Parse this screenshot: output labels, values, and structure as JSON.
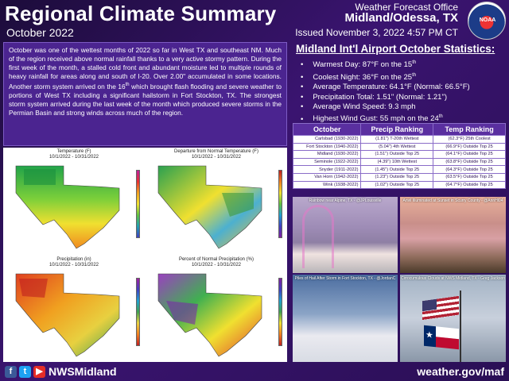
{
  "header": {
    "title": "Regional Climate Summary",
    "subtitle": "October 2022",
    "office_line1": "Weather Forecast Office",
    "office_line2": "Midland/Odessa, TX",
    "issued": "Issued November 3, 2022 4:57 PM CT",
    "logo_text": "NOAA"
  },
  "narrative": {
    "p1": "October was one of the wettest months of 2022 so far in West TX and southeast NM. Much of the region received above normal rainfall thanks to a very active stormy pattern. During the first week of the month, a stalled cold front and abundant moisture led to multiple rounds of heavy rainfall for areas along and south of I-20. Over 2.00\" accumulated in some locations. Another storm system arrived on the 16",
    "sup1": "th",
    "p2": " which brought flash flooding and severe weather to portions of West TX including a significant hailstorm in Fort Stockton, TX. The strongest storm system arrived during the last week of the month which produced severe storms in the Permian Basin and strong winds across much of the region."
  },
  "maps": [
    {
      "title": "Temperature (F)",
      "dates": "10/1/2022 - 10/31/2022"
    },
    {
      "title": "Departure from Normal Temperature (F)",
      "dates": "10/1/2022 - 10/31/2022"
    },
    {
      "title": "Precipitation (in)",
      "dates": "10/1/2022 - 10/31/2022"
    },
    {
      "title": "Percent of Normal Precipitation (%)",
      "dates": "10/1/2022 - 10/31/2022"
    }
  ],
  "stats": {
    "title": "Midland Int'l Airport October Statistics:",
    "items": [
      {
        "text": "Warmest Day: 87°F on the 15",
        "sup": "th"
      },
      {
        "text": "Coolest Night: 36°F on the 25",
        "sup": "th"
      },
      {
        "text": "Average Temperature: 64.1°F (Normal: 66.5°F)",
        "sup": ""
      },
      {
        "text": "Precipitation Total: 1.51\" (Normal: 1.21\")",
        "sup": ""
      },
      {
        "text": "Average Wind Speed: 9.3 mph",
        "sup": ""
      },
      {
        "text": "Highest Wind Gust: 55 mph on the 24",
        "sup": "th"
      }
    ]
  },
  "ranking_table": {
    "headers": [
      "October",
      "Precip Ranking",
      "Temp Ranking"
    ],
    "rows": [
      [
        "Carlsbad (1930-2022)",
        "(1.81\") T-20th Wettest",
        "(62.3°F) 25th Coolest"
      ],
      [
        "Fort Stockton (1940-2022)",
        "(5.04\") 4th Wettest",
        "(66.9°F) Outside Top 25"
      ],
      [
        "Midland (1930-2022)",
        "(1.51\") Outside Top 25",
        "(64.1°F) Outside Top 25"
      ],
      [
        "Seminole (1922-2022)",
        "(4.39\") 10th Wettest",
        "(63.8°F) Outside Top 25"
      ],
      [
        "Snyder (1911-2022)",
        "(1.45\") Outside Top 25",
        "(64.3°F) Outside Top 25"
      ],
      [
        "Van Horn (1942-2022)",
        "(1.23\") Outside Top 25",
        "(63.5°F) Outside Top 25"
      ],
      [
        "Wink (1938-2022)",
        "(1.02\") Outside Top 25",
        "(64.7°F) Outside Top 25"
      ]
    ]
  },
  "photos": [
    {
      "caption": "Rainbow near Alpine, TX - @JPLouisville"
    },
    {
      "caption": "Anvil Illuminated at Sunset in Scurry County - @AnnHl04"
    },
    {
      "caption": "Piles of Hail After Storm in Fort Stockton, TX - @JordanC"
    },
    {
      "caption": "Cirrocumulous Clouds at NWS Midland, TX - Greg Jackson"
    }
  ],
  "footer": {
    "fb": "f",
    "tw": "t",
    "yt": "▶",
    "handle": "NWSMidland",
    "site": "weather.gov/maf"
  },
  "colors": {
    "background": "#2a0f55",
    "panel": "#4b2490",
    "table_header": "#5a2fa0"
  }
}
